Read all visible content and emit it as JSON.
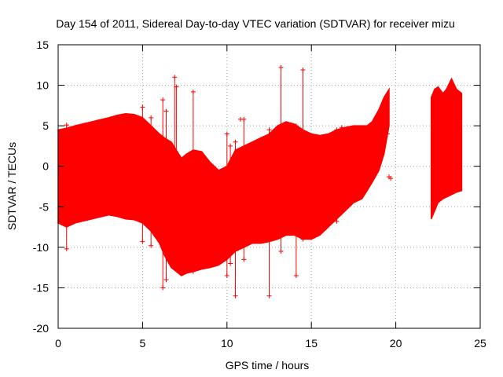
{
  "chart_data": {
    "type": "scatter",
    "title": "Day 154 of 2011, Sidereal Day-to-day VTEC variation (SDTVAR) for receiver mizu",
    "xlabel": "GPS time / hours",
    "ylabel": "SDTVAR / TECUs",
    "xlim": [
      0,
      25
    ],
    "ylim": [
      -20,
      15
    ],
    "xticks": [
      0,
      5,
      10,
      15,
      20,
      25
    ],
    "yticks": [
      -20,
      -15,
      -10,
      -5,
      0,
      5,
      10,
      15
    ],
    "grid": true,
    "color": "#ff0000",
    "series": [
      {
        "name": "SDTVAR",
        "band_segments": [
          {
            "x": [
              0.0,
              0.5,
              1.0,
              2.0,
              3.0,
              3.5,
              4.0,
              4.5,
              5.0,
              5.5,
              6.0,
              6.3,
              6.7,
              7.0,
              7.3,
              7.6,
              8.0,
              8.5,
              9.0,
              9.5,
              10.0,
              10.5,
              11.0,
              11.5,
              12.0,
              12.5,
              13.0,
              13.5,
              14.0,
              14.5,
              15.0,
              15.5,
              16.0,
              16.5,
              17.0,
              17.5,
              18.0,
              18.3,
              18.6,
              19.0,
              19.3,
              19.6
            ],
            "upper": [
              4.5,
              4.7,
              5.0,
              5.5,
              6.0,
              6.3,
              6.5,
              6.4,
              6.0,
              5.0,
              4.0,
              3.5,
              3.0,
              2.0,
              1.0,
              1.5,
              2.0,
              1.8,
              0.5,
              -0.5,
              0.0,
              2.0,
              2.5,
              3.0,
              3.5,
              4.0,
              5.0,
              5.5,
              5.2,
              4.5,
              4.0,
              3.8,
              4.0,
              4.5,
              4.8,
              5.0,
              5.0,
              5.0,
              5.5,
              7.0,
              8.5,
              9.5
            ],
            "lower": [
              -7.0,
              -7.5,
              -7.0,
              -6.5,
              -6.0,
              -6.2,
              -6.5,
              -6.6,
              -7.0,
              -8.0,
              -9.5,
              -11.0,
              -12.5,
              -13.0,
              -13.5,
              -13.2,
              -13.0,
              -12.7,
              -12.5,
              -12.2,
              -11.5,
              -10.5,
              -10.0,
              -9.5,
              -9.5,
              -9.3,
              -9.0,
              -8.5,
              -8.5,
              -9.0,
              -9.0,
              -8.5,
              -7.5,
              -6.5,
              -5.5,
              -4.5,
              -4.0,
              -3.0,
              -2.0,
              -0.5,
              1.5,
              5.0
            ]
          },
          {
            "x": [
              22.1,
              22.3,
              22.5,
              22.8,
              23.0,
              23.3,
              23.6,
              23.9
            ],
            "upper": [
              8.5,
              9.5,
              9.8,
              9.0,
              9.5,
              10.8,
              9.5,
              9.0
            ],
            "lower": [
              -6.5,
              -5.5,
              -4.5,
              -4.0,
              -3.8,
              -3.5,
              -3.2,
              -3.0
            ]
          }
        ],
        "spikes": [
          {
            "x": 0.5,
            "min": -10.2,
            "max": 5.1
          },
          {
            "x": 5.0,
            "min": -9.3,
            "max": 7.3
          },
          {
            "x": 5.5,
            "min": -9.8,
            "max": 6.0
          },
          {
            "x": 6.2,
            "min": -15.0,
            "max": 8.2
          },
          {
            "x": 6.4,
            "min": -14.0,
            "max": 6.8
          },
          {
            "x": 6.9,
            "min": -12.5,
            "max": 11.0
          },
          {
            "x": 7.0,
            "min": -11.0,
            "max": 9.8
          },
          {
            "x": 8.0,
            "min": -13.0,
            "max": 9.2
          },
          {
            "x": 10.0,
            "min": -13.5,
            "max": 4.0
          },
          {
            "x": 10.2,
            "min": -12.0,
            "max": 2.5
          },
          {
            "x": 10.5,
            "min": -16.0,
            "max": 3.0
          },
          {
            "x": 11.0,
            "min": -11.5,
            "max": 5.8
          },
          {
            "x": 12.5,
            "min": -16.0,
            "max": 4.5
          },
          {
            "x": 13.2,
            "min": -10.5,
            "max": 12.2
          },
          {
            "x": 14.1,
            "min": -13.5,
            "max": 5.0
          },
          {
            "x": 14.5,
            "min": -9.0,
            "max": 11.9
          },
          {
            "x": 16.5,
            "min": -6.8,
            "max": 4.5
          },
          {
            "x": 16.8,
            "min": -5.5,
            "max": 4.8
          }
        ],
        "points": [
          {
            "x": 10.8,
            "y": 5.8
          },
          {
            "x": 19.5,
            "y": 4.0
          },
          {
            "x": 19.6,
            "y": -1.3
          },
          {
            "x": 19.7,
            "y": -1.5
          }
        ]
      }
    ]
  }
}
